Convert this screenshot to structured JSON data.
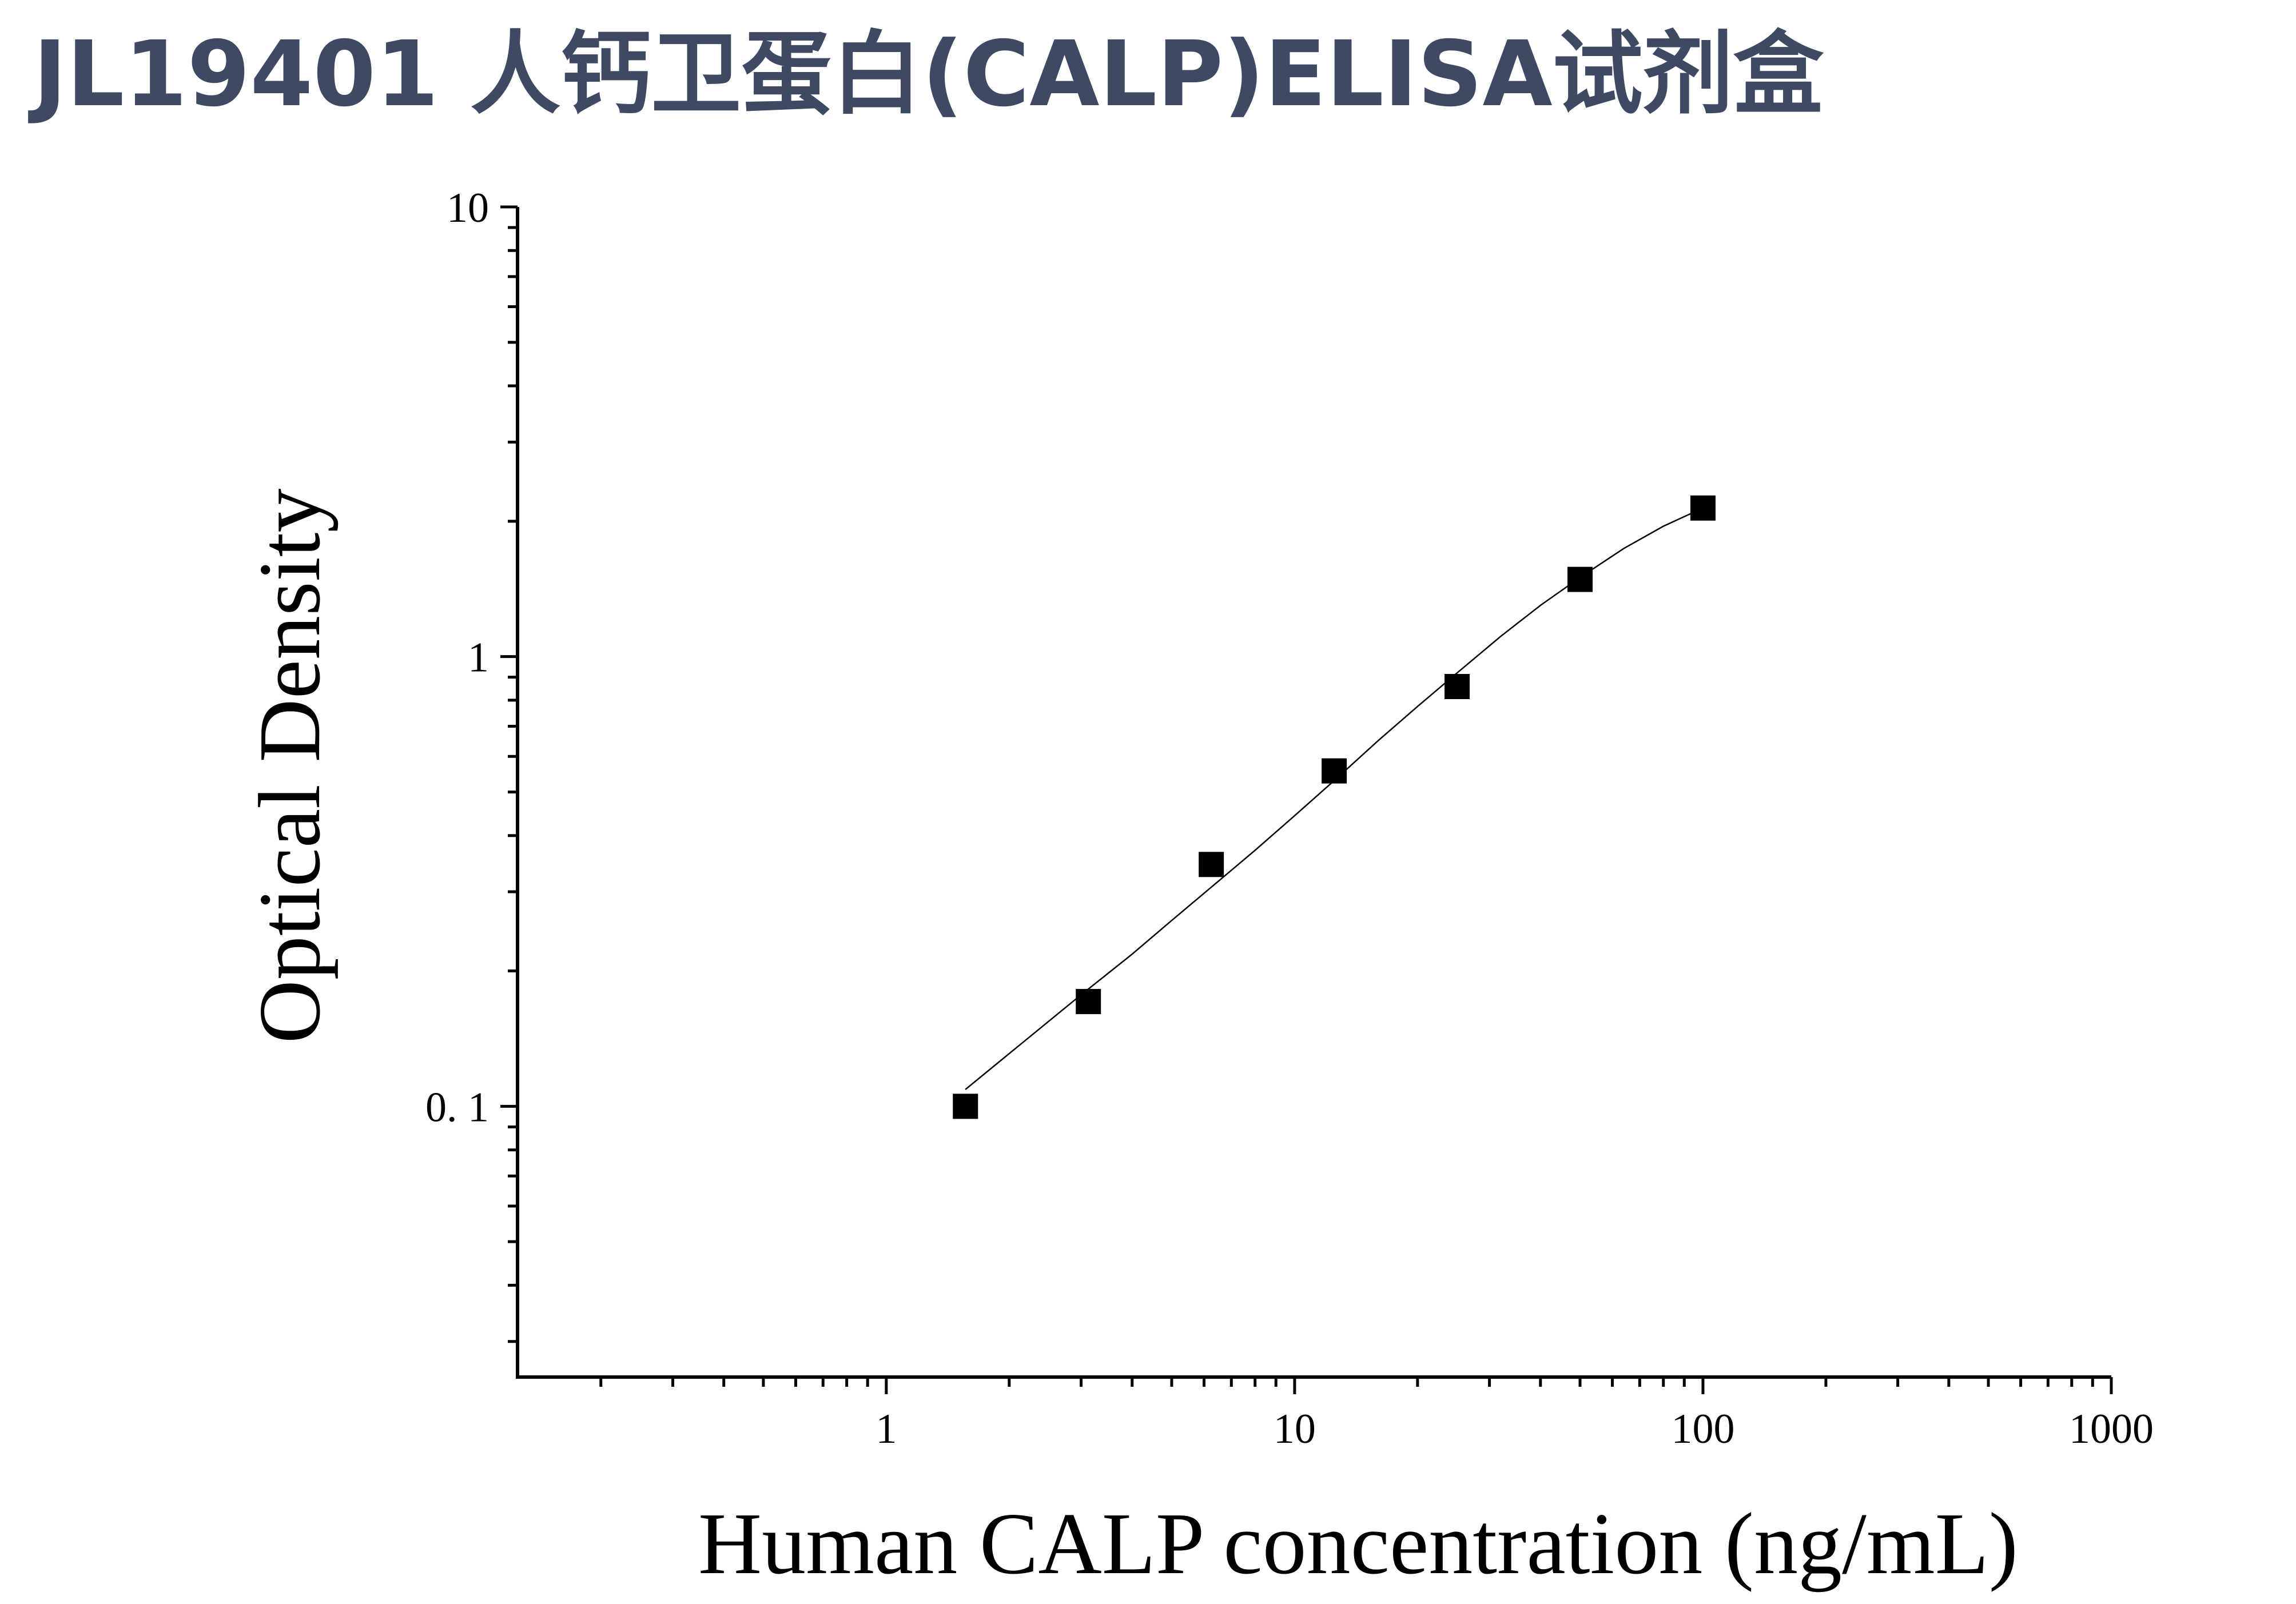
{
  "page": {
    "title": "JL19401 人钙卫蛋白(CALP)ELISA试剂盒"
  },
  "chart_data": {
    "type": "scatter",
    "title": "",
    "xlabel": "Human CALP concentration (ng/mL)",
    "ylabel": "Optical Density",
    "x_scale": "log",
    "y_scale": "log",
    "xlim": [
      0.125,
      1000
    ],
    "ylim": [
      0.025,
      10
    ],
    "x_ticks": [
      1,
      10,
      100,
      1000
    ],
    "x_tick_labels": [
      "1",
      "10",
      "100",
      "1000"
    ],
    "y_ticks": [
      0.1,
      1,
      10
    ],
    "y_tick_labels": [
      "0. 1",
      "1",
      "10"
    ],
    "grid": false,
    "legend": "none",
    "marker": "square",
    "marker_color": "#000000",
    "series": [
      {
        "x": [
          1.5625,
          3.125,
          6.25,
          12.5,
          25,
          50,
          100
        ],
        "y": [
          0.1,
          0.171,
          0.345,
          0.557,
          0.858,
          1.485,
          2.14
        ]
      }
    ],
    "fit_curve": {
      "x": [
        1.5625,
        2,
        3,
        4,
        5,
        6.25,
        8,
        10,
        12.5,
        16,
        20,
        25,
        32,
        40,
        50,
        64,
        80,
        100
      ],
      "y": [
        0.109,
        0.131,
        0.177,
        0.218,
        0.259,
        0.307,
        0.371,
        0.443,
        0.53,
        0.65,
        0.775,
        0.92,
        1.11,
        1.3,
        1.5,
        1.74,
        1.95,
        2.14
      ]
    }
  }
}
